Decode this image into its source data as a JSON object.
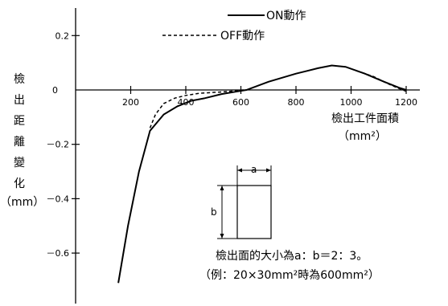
{
  "chart_data": {
    "type": "line",
    "xlabel": "檢出工件面積",
    "xunit": "（mm²）",
    "ylabel_chars": [
      "檢",
      "出",
      "距",
      "離",
      "變",
      "化"
    ],
    "yunit": "（mm）",
    "xlim": [
      0,
      1250
    ],
    "ylim": [
      -0.72,
      0.3
    ],
    "x_ticks": [
      {
        "value": 200,
        "label": "200"
      },
      {
        "value": 400,
        "label": "400"
      },
      {
        "value": 600,
        "label": "600"
      },
      {
        "value": 800,
        "label": "800"
      },
      {
        "value": 1000,
        "label": "1000"
      },
      {
        "value": 1200,
        "label": "1200"
      }
    ],
    "y_ticks": [
      {
        "value": 0.2,
        "label": "0.2"
      },
      {
        "value": 0,
        "label": "0"
      },
      {
        "value": -0.2,
        "label": "－0.2"
      },
      {
        "value": -0.4,
        "label": "－0.4"
      },
      {
        "value": -0.6,
        "label": "－0.6"
      }
    ],
    "series": [
      {
        "name": "ON動作",
        "style": "solid",
        "points": [
          [
            155,
            -0.71
          ],
          [
            190,
            -0.5
          ],
          [
            230,
            -0.3
          ],
          [
            270,
            -0.15
          ],
          [
            320,
            -0.09
          ],
          [
            370,
            -0.06
          ],
          [
            420,
            -0.04
          ],
          [
            470,
            -0.03
          ],
          [
            530,
            -0.015
          ],
          [
            590,
            -0.005
          ],
          [
            620,
            0.0
          ],
          [
            700,
            0.03
          ],
          [
            800,
            0.06
          ],
          [
            880,
            0.08
          ],
          [
            930,
            0.09
          ],
          [
            980,
            0.085
          ],
          [
            1050,
            0.06
          ],
          [
            1120,
            0.03
          ],
          [
            1175,
            0.008
          ],
          [
            1200,
            0.0
          ]
        ]
      },
      {
        "name": "OFF動作",
        "style": "dashed",
        "points": [
          [
            270,
            -0.14
          ],
          [
            290,
            -0.09
          ],
          [
            320,
            -0.05
          ],
          [
            360,
            -0.03
          ],
          [
            400,
            -0.02
          ],
          [
            450,
            -0.012
          ],
          [
            520,
            -0.008
          ],
          [
            560,
            -0.005
          ],
          [
            590,
            -0.002
          ],
          [
            610,
            0.0
          ],
          [
            1020,
            0.07
          ],
          [
            1080,
            0.05
          ],
          [
            1140,
            0.02
          ],
          [
            1180,
            0.003
          ],
          [
            1200,
            -0.005
          ]
        ]
      }
    ],
    "legend": [
      {
        "label": "ON動作",
        "style": "solid"
      },
      {
        "label": "OFF動作",
        "style": "dashed"
      }
    ],
    "inset": {
      "top_label": "a",
      "side_label": "b"
    },
    "notes": [
      "檢出面的大小為a：b＝2：3。",
      "（例：20×30mm²時為600mm²）"
    ]
  }
}
